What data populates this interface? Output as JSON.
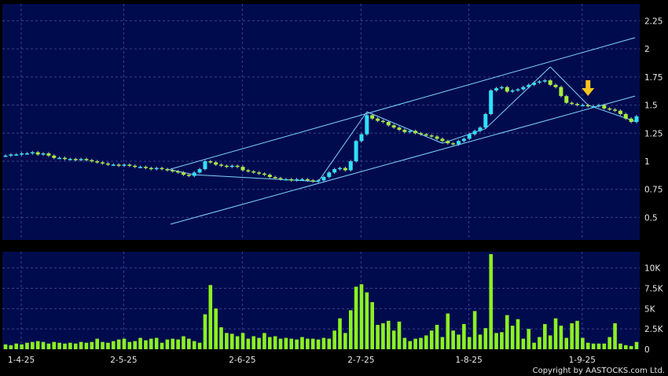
{
  "chart_data": [
    {
      "type": "candlestick",
      "ylim": [
        0.3,
        2.4
      ],
      "y_ticks": [
        "0.5",
        "0.75",
        "1",
        "1.25",
        "1.5",
        "1.75",
        "2",
        "2.25"
      ],
      "y_tick_values": [
        0.5,
        0.75,
        1,
        1.25,
        1.5,
        1.75,
        2,
        2.25
      ],
      "x_ticks": [
        "1-4-25",
        "2-5-25",
        "2-6-25",
        "2-7-25",
        "1-8-25",
        "1-9-25"
      ],
      "grid": true,
      "colors": {
        "background": "#000b4e",
        "grid": "#3b3f8a",
        "up": "#30e0f8",
        "down": "#a6ee3a",
        "line": "#7fd2ff",
        "arrow": "#f6c51c"
      },
      "close": [
        1.05,
        1.06,
        1.06,
        1.07,
        1.07,
        1.08,
        1.06,
        1.07,
        1.05,
        1.03,
        1.03,
        1.02,
        1.02,
        1.01,
        1.02,
        1.01,
        1.0,
        0.99,
        0.98,
        0.97,
        0.97,
        0.96,
        0.97,
        0.96,
        0.95,
        0.95,
        0.94,
        0.93,
        0.94,
        0.93,
        0.92,
        0.91,
        0.9,
        0.88,
        0.87,
        0.9,
        0.93,
        1.0,
        0.99,
        0.97,
        0.96,
        0.95,
        0.96,
        0.95,
        0.92,
        0.91,
        0.9,
        0.89,
        0.88,
        0.86,
        0.85,
        0.84,
        0.84,
        0.83,
        0.84,
        0.84,
        0.83,
        0.82,
        0.83,
        0.86,
        0.9,
        0.93,
        0.94,
        0.92,
        1.0,
        1.18,
        1.24,
        1.41,
        1.38,
        1.36,
        1.35,
        1.32,
        1.3,
        1.28,
        1.26,
        1.27,
        1.25,
        1.24,
        1.23,
        1.22,
        1.2,
        1.18,
        1.16,
        1.15,
        1.18,
        1.2,
        1.24,
        1.27,
        1.3,
        1.42,
        1.63,
        1.65,
        1.66,
        1.62,
        1.63,
        1.64,
        1.66,
        1.68,
        1.7,
        1.71,
        1.72,
        1.68,
        1.66,
        1.58,
        1.52,
        1.51,
        1.5,
        1.5,
        1.49,
        1.49,
        1.5,
        1.47,
        1.46,
        1.45,
        1.42,
        1.38,
        1.35,
        1.4
      ],
      "volume_ylim": [
        0,
        12000
      ],
      "volume_ticks": [
        "0",
        "2.5K",
        "5K",
        "7.5K",
        "10K"
      ],
      "volume_tick_values": [
        0,
        2500,
        5000,
        7500,
        10000
      ],
      "volume": [
        600,
        500,
        700,
        600,
        800,
        900,
        1000,
        900,
        700,
        900,
        800,
        700,
        800,
        700,
        900,
        800,
        900,
        1300,
        900,
        800,
        1000,
        1200,
        1300,
        900,
        1000,
        1400,
        1100,
        1300,
        1400,
        800,
        1200,
        1300,
        1200,
        1600,
        1300,
        1000,
        800,
        4300,
        7900,
        5000,
        2700,
        2000,
        1900,
        1600,
        2000,
        1300,
        1600,
        1400,
        2000,
        1500,
        1600,
        1300,
        1400,
        1300,
        1200,
        1500,
        1300,
        1300,
        1200,
        1400,
        1300,
        2300,
        3800,
        2000,
        4800,
        7700,
        8000,
        7000,
        5800,
        3000,
        3200,
        3500,
        2300,
        3400,
        1400,
        1000,
        1300,
        1400,
        1700,
        2300,
        3000,
        1500,
        4400,
        2300,
        1800,
        3100,
        1500,
        4700,
        1800,
        2600,
        11700,
        2000,
        2100,
        4200,
        2900,
        3700,
        1300,
        2500,
        800,
        1500,
        3100,
        1700,
        3800,
        2900,
        1400,
        3200,
        3500,
        1400,
        800,
        700,
        700,
        700,
        1500,
        3200,
        700,
        500,
        400,
        900
      ],
      "copyright": "Copyright by AASTOCKS.com Ltd."
    }
  ]
}
